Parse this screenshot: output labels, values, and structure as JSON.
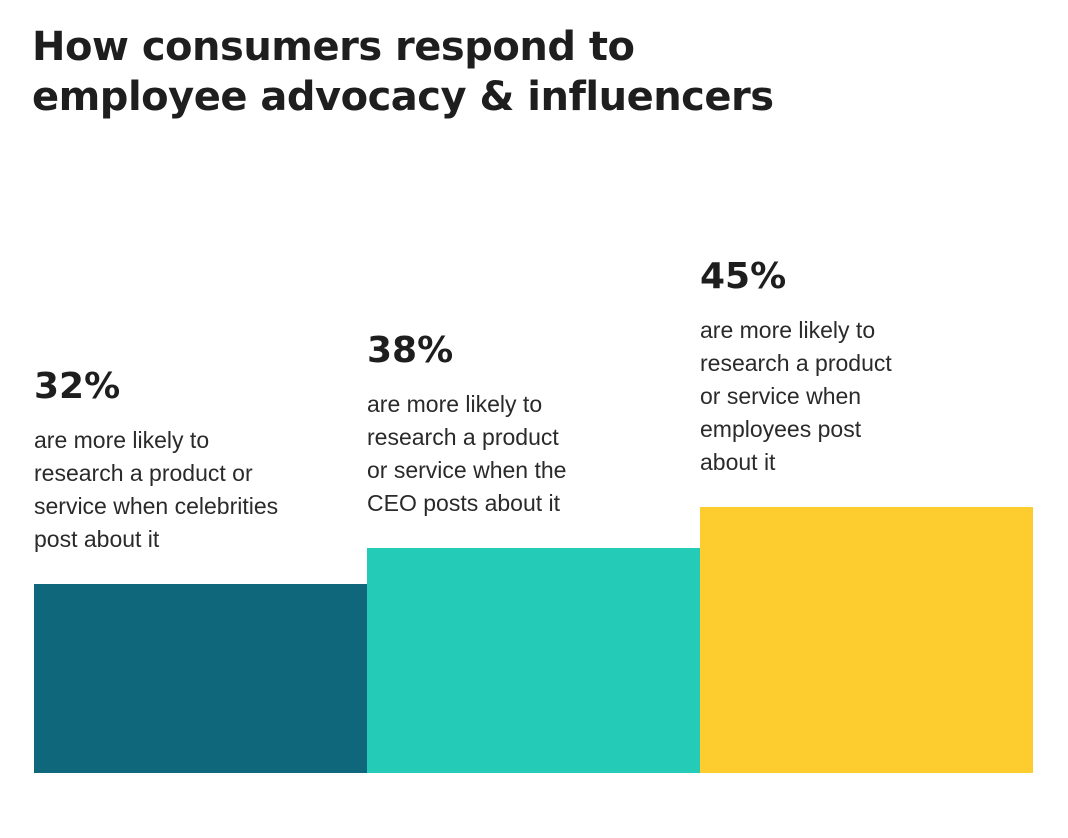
{
  "chart_data": {
    "type": "bar",
    "title_lines": [
      "How consumers respond to",
      "employee advocacy & influencers"
    ],
    "categories": [
      "are more likely to\nresearch a product or\nservice when celebrities\npost about it",
      "are more likely to\nresearch a product\nor service when the\nCEO posts about it",
      "are more likely to\nresearch a product\nor service when\nemployees post\nabout it"
    ],
    "values": [
      32,
      38,
      45
    ],
    "value_labels": [
      "32%",
      "38%",
      "45%"
    ],
    "colors": [
      "#0e677b",
      "#24cbb6",
      "#fdcd2f"
    ],
    "ylim": [
      0,
      100
    ],
    "grid": false,
    "legend": "none"
  }
}
